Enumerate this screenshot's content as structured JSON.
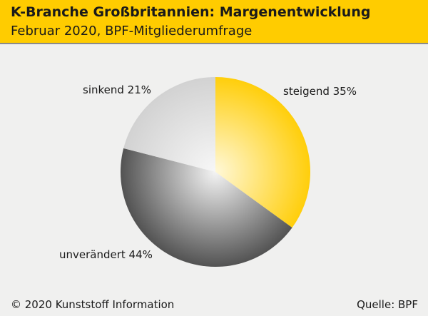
{
  "header": {
    "title": "K-Branche Großbritannien: Margenentwicklung",
    "subtitle": "Februar 2020, BPF-Mitgliederumfrage"
  },
  "footer": {
    "copyright": "© 2020 Kunststoff Information",
    "source": "Quelle: BPF"
  },
  "chart_data": {
    "type": "pie",
    "title": "K-Branche Großbritannien: Margenentwicklung",
    "subtitle": "Februar 2020, BPF-Mitgliederumfrage",
    "slices": [
      {
        "label": "steigend 35%",
        "category": "steigend",
        "value": 35,
        "color": "#ffcc00"
      },
      {
        "label": "unverändert 44%",
        "category": "unverändert",
        "value": 44,
        "color": "#6e6e6e"
      },
      {
        "label": "sinkend 21%",
        "category": "sinkend",
        "value": 21,
        "color": "#d8d8d8"
      }
    ]
  }
}
